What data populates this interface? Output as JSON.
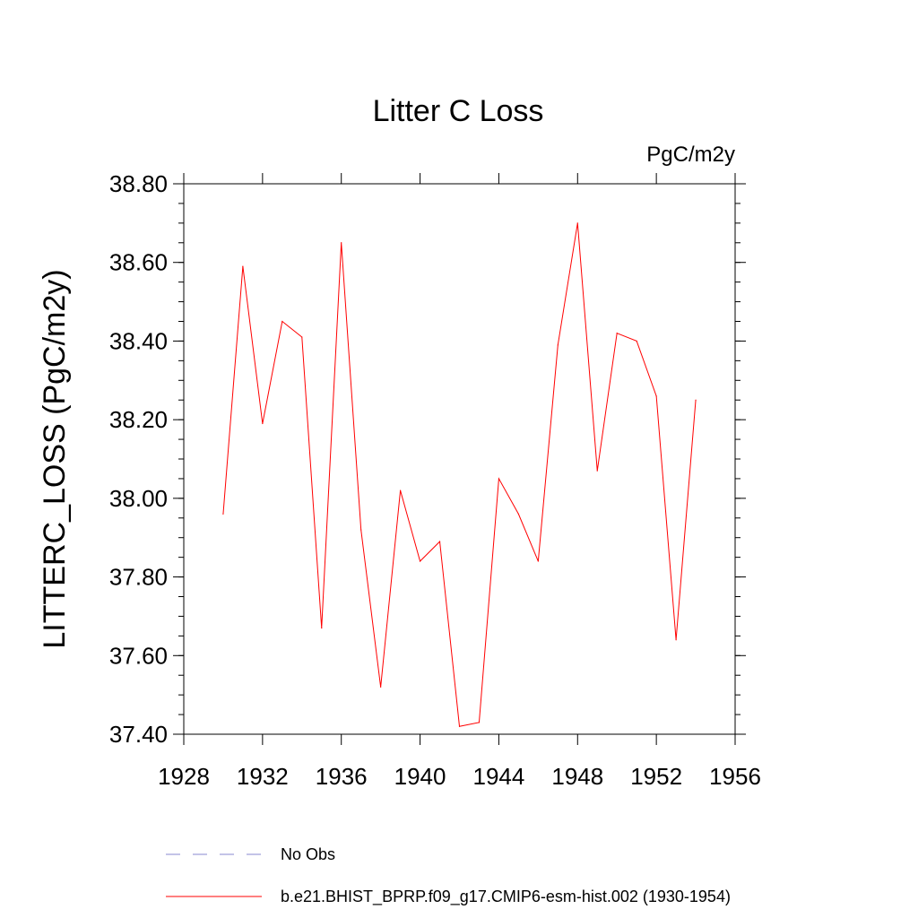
{
  "chart_data": {
    "type": "line",
    "title": "Litter C Loss",
    "units_label": "PgC/m2y",
    "ylabel": "LITTERC_LOSS  (PgC/m2y)",
    "xlabel": "",
    "xlim": [
      1928,
      1956
    ],
    "ylim": [
      37.4,
      38.8
    ],
    "x_ticks": [
      "1928",
      "1932",
      "1936",
      "1940",
      "1944",
      "1948",
      "1952",
      "1956"
    ],
    "y_ticks": [
      "37.40",
      "37.60",
      "37.80",
      "38.00",
      "38.20",
      "38.40",
      "38.60",
      "38.80"
    ],
    "grid": false,
    "legend_position": "bottom",
    "series": [
      {
        "name": "b.e21.BHIST_BPRP.f09_g17.CMIP6-esm-hist.002 (1930-1954)",
        "color": "#ff0000",
        "style": "solid",
        "x": [
          1930,
          1931,
          1932,
          1933,
          1934,
          1935,
          1936,
          1937,
          1938,
          1939,
          1940,
          1941,
          1942,
          1943,
          1944,
          1945,
          1946,
          1947,
          1948,
          1949,
          1950,
          1951,
          1952,
          1953,
          1954
        ],
        "values": [
          37.96,
          38.59,
          38.19,
          38.45,
          38.41,
          37.67,
          38.65,
          37.92,
          37.52,
          38.02,
          37.84,
          37.89,
          37.42,
          37.43,
          38.05,
          37.96,
          37.84,
          38.39,
          38.7,
          38.07,
          38.42,
          38.4,
          38.26,
          37.64,
          38.25
        ]
      }
    ],
    "legend": [
      {
        "label": "No Obs",
        "color": "#8a8ad0",
        "style": "dashed"
      },
      {
        "label": "b.e21.BHIST_BPRP.f09_g17.CMIP6-esm-hist.002 (1930-1954)",
        "color": "#ff0000",
        "style": "solid"
      }
    ]
  }
}
